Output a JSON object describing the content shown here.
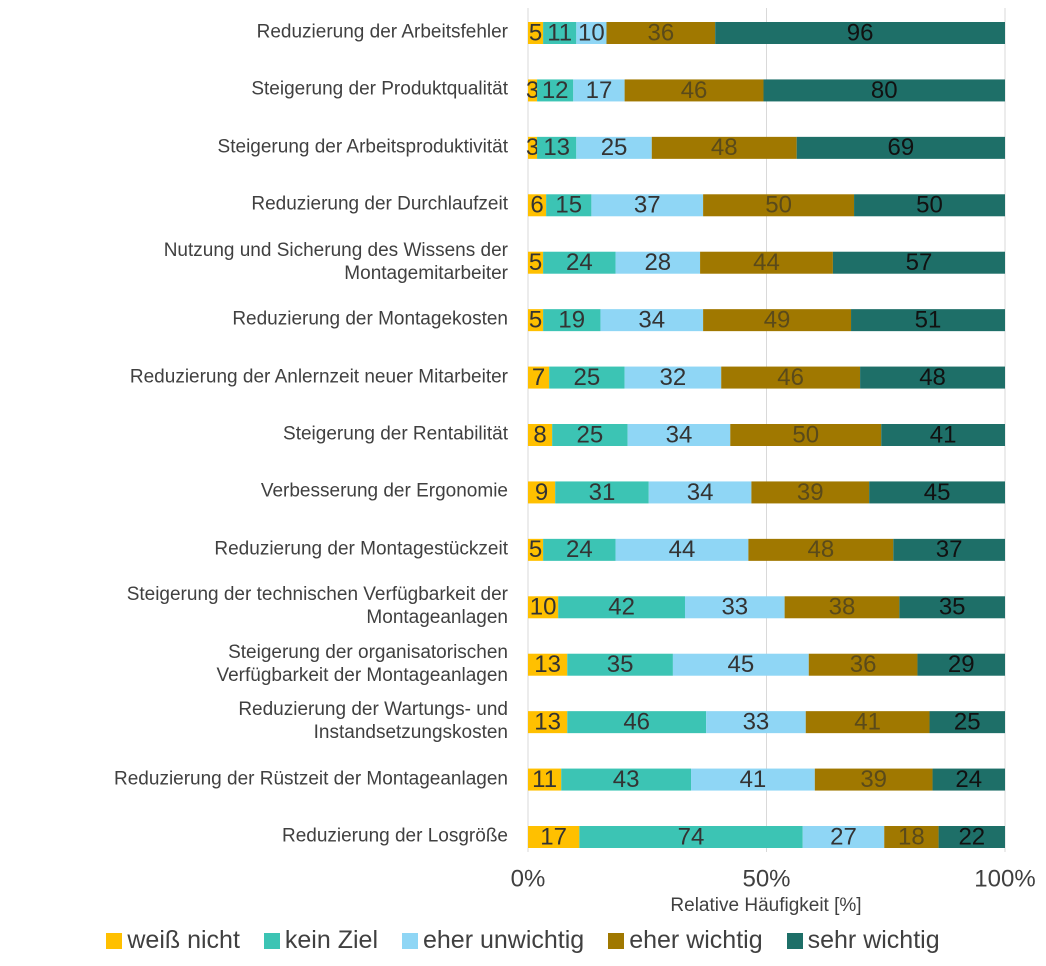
{
  "chart_data": {
    "type": "bar",
    "orientation": "horizontal",
    "stacked": "percent",
    "x_label": "Relative Häufigkeit [%]",
    "categories": [
      "Reduzierung der Arbeitsfehler",
      "Steigerung der Produktqualität",
      "Steigerung der Arbeitsproduktivität",
      "Reduzierung der Durchlaufzeit",
      "Nutzung und Sicherung des Wissens der\nMontagemitarbeiter",
      "Reduzierung der Montagekosten",
      "Reduzierung der Anlernzeit neuer Mitarbeiter",
      "Steigerung der Rentabilität",
      "Verbesserung der Ergonomie",
      "Reduzierung der Montagestückzeit",
      "Steigerung der technischen Verfügbarkeit der\nMontageanlagen",
      "Steigerung der organisatorischen\nVerfügbarkeit der Montageanlagen",
      "Reduzierung der Wartungs- und\nInstandsetzungskosten",
      "Reduzierung der Rüstzeit der Montageanlagen",
      "Reduzierung der Losgröße"
    ],
    "series": [
      {
        "name": "weiß nicht",
        "color": "#FFC000",
        "values": [
          5,
          3,
          3,
          6,
          5,
          5,
          7,
          8,
          9,
          5,
          10,
          13,
          13,
          11,
          17
        ]
      },
      {
        "name": "kein Ziel",
        "color": "#3CC4B4",
        "values": [
          11,
          12,
          13,
          15,
          24,
          19,
          25,
          25,
          31,
          24,
          42,
          35,
          46,
          43,
          74
        ]
      },
      {
        "name": "eher unwichtig",
        "color": "#8FD6F5",
        "values": [
          10,
          17,
          25,
          37,
          28,
          34,
          32,
          34,
          34,
          44,
          33,
          45,
          33,
          41,
          27
        ]
      },
      {
        "name": "eher wichtig",
        "color": "#A07800",
        "values": [
          36,
          46,
          48,
          50,
          44,
          49,
          46,
          50,
          39,
          48,
          38,
          36,
          41,
          39,
          18
        ]
      },
      {
        "name": "sehr wichtig",
        "color": "#1E6F68",
        "values": [
          96,
          80,
          69,
          50,
          57,
          51,
          48,
          41,
          45,
          37,
          35,
          29,
          25,
          24,
          22
        ]
      }
    ],
    "xlim": [
      0,
      100
    ],
    "xticks": [
      {
        "value": 0,
        "label": "0%"
      },
      {
        "value": 50,
        "label": "50%"
      },
      {
        "value": 100,
        "label": "100%"
      }
    ],
    "grid": true,
    "legend": "bottom"
  }
}
